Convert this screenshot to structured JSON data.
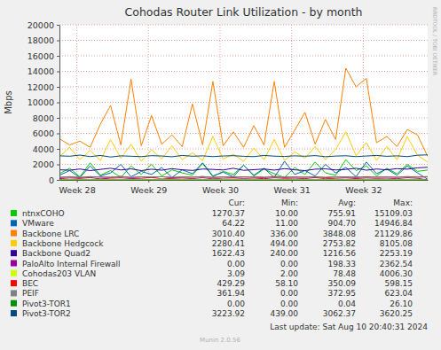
{
  "chart_data": {
    "type": "line",
    "title": "Cohodas Router Link Utilization - by month",
    "ylabel": "Mbps",
    "side_note": "RRDTOOL / TOBI OETIKER",
    "last_update": "Last update: Sat Aug 10 20:40:31 2024",
    "generator": "Munin 2.0.56",
    "grid": true,
    "legend": "bottom",
    "stats_columns": [
      "Cur:",
      "Min:",
      "Avg:",
      "Max:"
    ],
    "x": [
      0,
      1,
      2,
      3,
      4,
      5,
      6,
      7,
      8,
      9,
      10,
      11,
      12,
      13,
      14,
      15,
      16,
      17,
      18,
      19,
      20,
      21,
      22,
      23,
      24,
      25,
      26,
      27,
      28,
      29,
      30,
      31,
      32,
      33,
      34,
      35,
      36
    ],
    "xlim": [
      0,
      36
    ],
    "xticks": [
      {
        "value": 1.7,
        "label": "Week 28"
      },
      {
        "value": 8.7,
        "label": "Week 29"
      },
      {
        "value": 15.7,
        "label": "Week 30"
      },
      {
        "value": 22.7,
        "label": "Week 31"
      },
      {
        "value": 29.7,
        "label": "Week 32"
      }
    ],
    "ylim": [
      0,
      20000
    ],
    "yticks": [
      0,
      2000,
      4000,
      6000,
      8000,
      10000,
      12000,
      14000,
      16000,
      18000,
      20000
    ],
    "series": [
      {
        "name": "ntnxCOHO",
        "color": "#00CC00",
        "stats": [
          "1270.37",
          "10.00",
          "755.91",
          "15109.03"
        ],
        "values": [
          800,
          1500,
          400,
          2200,
          600,
          1200,
          300,
          1800,
          700,
          2000,
          500,
          1300,
          900,
          600,
          2100,
          400,
          1100,
          700,
          1900,
          500,
          1400,
          800,
          300,
          1600,
          700,
          2300,
          900,
          600,
          2600,
          1200,
          1800,
          500,
          1500,
          800,
          2000,
          1100,
          1270
        ]
      },
      {
        "name": "VMware",
        "color": "#0066B3",
        "stats": [
          "64.22",
          "11.00",
          "904.70",
          "14946.84"
        ],
        "values": [
          600,
          1200,
          300,
          1800,
          500,
          900,
          2000,
          400,
          1100,
          700,
          1600,
          300,
          1300,
          800,
          2200,
          500,
          1000,
          400,
          1900,
          600,
          1500,
          300,
          2400,
          700,
          1200,
          500,
          2000,
          900,
          1600,
          400,
          2300,
          800,
          1400,
          600,
          1800,
          900,
          64
        ]
      },
      {
        "name": "Backbone LRC",
        "color": "#FF8000",
        "stats": [
          "3010.40",
          "336.00",
          "3848.08",
          "21129.86"
        ],
        "values": [
          5300,
          4500,
          5000,
          4200,
          7200,
          9600,
          4500,
          13000,
          4400,
          8300,
          4600,
          5800,
          4300,
          9800,
          4500,
          12700,
          4400,
          6200,
          4200,
          7000,
          4500,
          12700,
          4200,
          6400,
          8700,
          4600,
          7800,
          5200,
          14400,
          12000,
          13100,
          4800,
          5600,
          4300,
          6500,
          5800,
          3010
        ]
      },
      {
        "name": "Backbone Hedgcock",
        "color": "#FFCC00",
        "stats": [
          "2280.41",
          "494.00",
          "2753.82",
          "8105.08"
        ],
        "values": [
          3000,
          4200,
          2600,
          3800,
          2500,
          5200,
          2800,
          4600,
          2400,
          3900,
          2700,
          4400,
          2600,
          3500,
          2500,
          5600,
          2700,
          3300,
          2400,
          4100,
          2600,
          5200,
          2500,
          3600,
          2800,
          4300,
          2600,
          3900,
          6200,
          3100,
          4800,
          2500,
          4300,
          2600,
          5600,
          3200,
          2280
        ]
      },
      {
        "name": "Backbone Quad2",
        "color": "#330099",
        "stats": [
          "1622.43",
          "240.00",
          "1216.56",
          "2253.19"
        ],
        "values": [
          1300,
          1250,
          1400,
          1200,
          1350,
          1500,
          1280,
          1420,
          1200,
          1380,
          1250,
          1450,
          1300,
          1220,
          1400,
          1350,
          1280,
          1500,
          1230,
          1320,
          1400,
          1260,
          1450,
          1300,
          1200,
          1380,
          1420,
          1280,
          1350,
          1500,
          1250,
          1400,
          1300,
          1450,
          1380,
          1550,
          1622
        ]
      },
      {
        "name": "PaloAlto Internal Firewall",
        "color": "#990099",
        "stats": [
          "0.00",
          "0.00",
          "198.33",
          "2362.54"
        ],
        "values": [
          150,
          250,
          180,
          300,
          120,
          220,
          260,
          170,
          200,
          310,
          140,
          190,
          240,
          160,
          280,
          130,
          210,
          250,
          180,
          230,
          150,
          270,
          190,
          220,
          160,
          300,
          140,
          200,
          260,
          170,
          240,
          190,
          220,
          150,
          280,
          200,
          0
        ]
      },
      {
        "name": "Cohodas203 VLAN",
        "color": "#CCFF00",
        "stats": [
          "3.09",
          "2.00",
          "78.48",
          "4006.30"
        ],
        "values": [
          60,
          90,
          70,
          110,
          50,
          80,
          100,
          60,
          90,
          70,
          120,
          55,
          85,
          75,
          95,
          65,
          105,
          70,
          80,
          90,
          60,
          100,
          75,
          85,
          65,
          110,
          70,
          90,
          80,
          60,
          100,
          75,
          85,
          70,
          95,
          80,
          3
        ]
      },
      {
        "name": "BEC",
        "color": "#FF0000",
        "stats": [
          "429.29",
          "58.10",
          "350.09",
          "598.15"
        ],
        "values": [
          300,
          400,
          280,
          420,
          350,
          310,
          450,
          290,
          380,
          330,
          410,
          270,
          360,
          340,
          430,
          300,
          390,
          320,
          400,
          350,
          290,
          440,
          310,
          370,
          330,
          420,
          280,
          360,
          390,
          300,
          410,
          340,
          380,
          320,
          430,
          360,
          429
        ]
      },
      {
        "name": "PEIF",
        "color": "#808080",
        "stats": [
          "361.94",
          "0.00",
          "372.95",
          "623.04"
        ],
        "values": [
          350,
          420,
          330,
          390,
          380,
          360,
          440,
          320,
          400,
          370,
          410,
          340,
          390,
          360,
          430,
          330,
          380,
          400,
          350,
          420,
          370,
          340,
          410,
          360,
          390,
          380,
          350,
          430,
          370,
          400,
          340,
          390,
          410,
          360,
          380,
          350,
          362
        ]
      },
      {
        "name": "Pivot3-TOR1",
        "color": "#008F00",
        "stats": [
          "0.00",
          "0.00",
          "0.04",
          "26.10"
        ],
        "values": [
          0,
          0,
          0,
          0,
          0,
          0,
          0,
          0,
          0,
          0,
          0,
          0,
          0,
          0,
          0,
          0,
          0,
          0,
          0,
          0,
          0,
          0,
          0,
          0,
          0,
          0,
          0,
          0,
          0,
          0,
          0,
          0,
          0,
          0,
          0,
          0,
          0
        ]
      },
      {
        "name": "Pivot3-TOR2",
        "color": "#00487D",
        "stats": [
          "3223.92",
          "439.00",
          "3062.37",
          "3620.25"
        ],
        "values": [
          3100,
          3050,
          3200,
          3000,
          3150,
          2950,
          3100,
          3050,
          3000,
          3120,
          3080,
          2980,
          3150,
          3050,
          3100,
          3000,
          3080,
          3120,
          3040,
          3000,
          3150,
          3060,
          3020,
          3100,
          3050,
          3130,
          2990,
          3070,
          3110,
          3000,
          3080,
          3150,
          3040,
          3100,
          3000,
          3180,
          3224
        ]
      }
    ]
  }
}
